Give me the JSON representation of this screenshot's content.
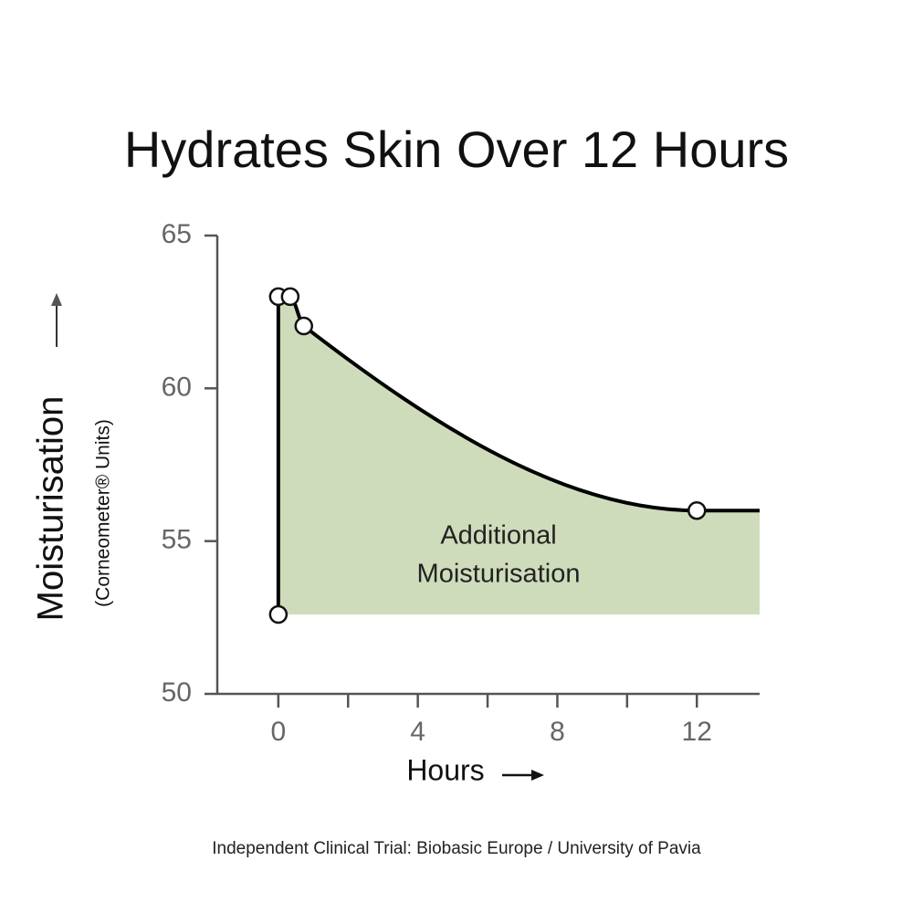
{
  "chart_data": {
    "type": "line",
    "title": "Hydrates Skin Over 12 Hours",
    "y_label": "Moisturisation",
    "y_sublabel": "(Corneometer® Units)",
    "x_label": "Hours",
    "annotation": [
      "Additional",
      "Moisturisation"
    ],
    "source": "Independent Clinical Trial: Biobasic Europe / University of Pavia",
    "xlim": [
      -1.75,
      13.8
    ],
    "xticks": [
      0,
      4,
      8,
      12
    ],
    "xminor_ticks": [
      2,
      6,
      10
    ],
    "ylim": [
      50,
      65
    ],
    "yticks": [
      50,
      55,
      60,
      65
    ],
    "series": [
      {
        "color": "#000000",
        "fill": "#cfdcbb",
        "x": [
          0,
          0,
          0.34,
          0.73,
          12,
          13.8
        ],
        "values": [
          52.6,
          63,
          63,
          62.04,
          56,
          56
        ]
      }
    ]
  }
}
